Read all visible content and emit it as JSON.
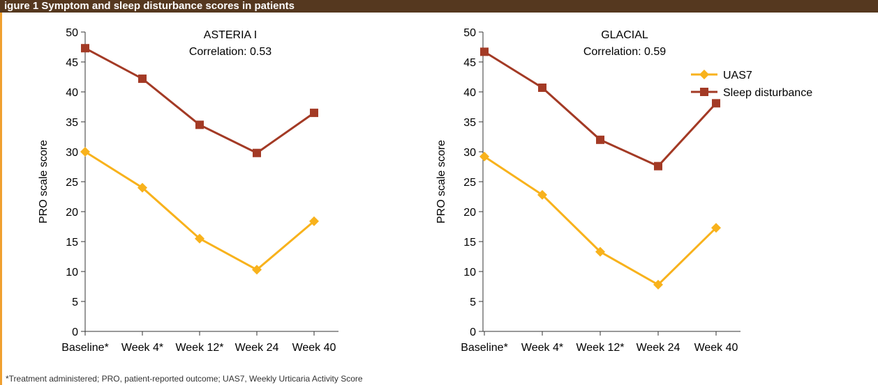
{
  "header": {
    "title": "igure 1 Symptom and sleep disturbance scores in patients"
  },
  "footnote": "*Treatment administered; PRO, patient-reported outcome; UAS7, Weekly Urticaria Activity Score",
  "colors": {
    "uas7": "#f8b21c",
    "sleep": "#a33a25",
    "header_bg": "#55381f",
    "accent_rule": "#f0a030",
    "axis": "#333333"
  },
  "chart_data": [
    {
      "type": "line",
      "title": "ASTERIA I",
      "subtitle": "Correlation: 0.53",
      "xlabel": "",
      "ylabel": "PRO scale score",
      "ylim": [
        0,
        50
      ],
      "yticks": [
        0,
        5,
        10,
        15,
        20,
        25,
        30,
        35,
        40,
        45,
        50
      ],
      "categories": [
        "Baseline*",
        "Week 4*",
        "Week 12*",
        "Week 24",
        "Week 40"
      ],
      "grid": false,
      "legend": "none",
      "series": [
        {
          "name": "UAS7",
          "values": [
            30.0,
            24.0,
            15.5,
            10.3,
            18.4
          ]
        },
        {
          "name": "Sleep disturbance",
          "values": [
            47.3,
            42.2,
            34.5,
            29.8,
            36.5
          ]
        }
      ]
    },
    {
      "type": "line",
      "title": "GLACIAL",
      "subtitle": "Correlation: 0.59",
      "xlabel": "",
      "ylabel": "PRO scale score",
      "ylim": [
        0,
        50
      ],
      "yticks": [
        0,
        5,
        10,
        15,
        20,
        25,
        30,
        35,
        40,
        45,
        50
      ],
      "categories": [
        "Baseline*",
        "Week 4*",
        "Week 12*",
        "Week 24",
        "Week 40"
      ],
      "grid": false,
      "legend": "top-right",
      "series": [
        {
          "name": "UAS7",
          "values": [
            29.2,
            22.8,
            13.3,
            7.8,
            17.3
          ]
        },
        {
          "name": "Sleep disturbance",
          "values": [
            46.7,
            40.7,
            32.0,
            27.6,
            38.1
          ]
        }
      ]
    }
  ]
}
